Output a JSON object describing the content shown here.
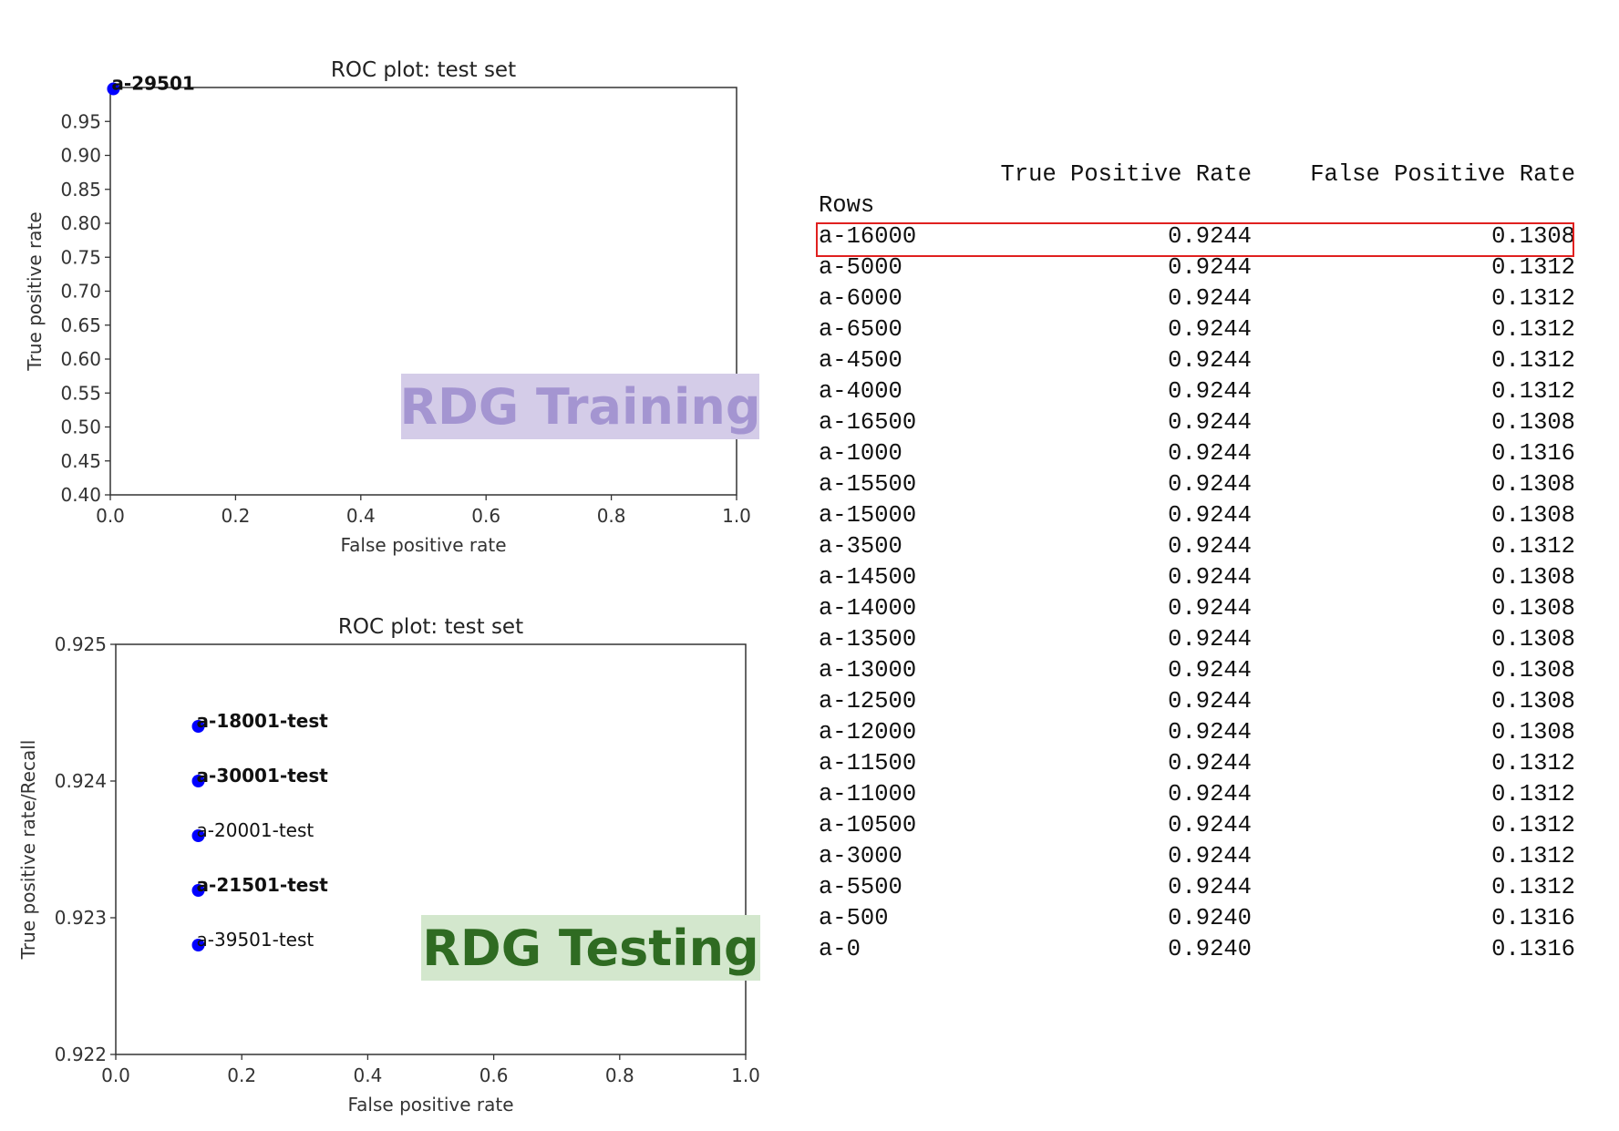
{
  "colors": {
    "point": "#0000ff",
    "axes": "#333333",
    "highlight_box": "#e0201f",
    "training_label_bg": "#d4cce8",
    "training_label_fg": "#a495d1",
    "testing_label_bg": "#d3e7cd",
    "testing_label_fg": "#2f6b22"
  },
  "overlays": {
    "training": "RDG Training",
    "testing": "RDG Testing"
  },
  "chart_data": [
    {
      "type": "scatter",
      "title": "ROC plot: test set",
      "xlabel": "False positive rate",
      "ylabel": "True positive rate",
      "xlim": [
        0.0,
        1.0
      ],
      "ylim": [
        0.4,
        1.0
      ],
      "xticks": [
        "0.0",
        "0.2",
        "0.4",
        "0.6",
        "0.8",
        "1.0"
      ],
      "yticks": [
        "0.40",
        "0.45",
        "0.50",
        "0.55",
        "0.60",
        "0.65",
        "0.70",
        "0.75",
        "0.80",
        "0.85",
        "0.90",
        "0.95"
      ],
      "points": [
        {
          "x": 0.005,
          "y": 0.998,
          "label": "a-29501",
          "bold": true
        }
      ]
    },
    {
      "type": "scatter",
      "title": "ROC plot: test set",
      "xlabel": "False positive rate",
      "ylabel": "True positive rate/Recall",
      "xlim": [
        0.0,
        1.0
      ],
      "ylim": [
        0.922,
        0.925
      ],
      "xticks": [
        "0.0",
        "0.2",
        "0.4",
        "0.6",
        "0.8",
        "1.0"
      ],
      "yticks": [
        "0.922",
        "0.923",
        "0.924",
        "0.925"
      ],
      "points": [
        {
          "x": 0.131,
          "y": 0.9244,
          "label": "a-18001-test",
          "bold": true
        },
        {
          "x": 0.131,
          "y": 0.924,
          "label": "a-30001-test",
          "bold": true
        },
        {
          "x": 0.131,
          "y": 0.9236,
          "label": "a-20001-test",
          "bold": false
        },
        {
          "x": 0.131,
          "y": 0.9232,
          "label": "a-21501-test",
          "bold": true
        },
        {
          "x": 0.131,
          "y": 0.9228,
          "label": "a-39501-test",
          "bold": false
        }
      ]
    }
  ],
  "table": {
    "index_label": "Rows",
    "columns": [
      "True Positive Rate",
      "False Positive Rate"
    ],
    "rows": [
      [
        "a-16000",
        "0.9244",
        "0.1308"
      ],
      [
        "a-5000",
        "0.9244",
        "0.1312"
      ],
      [
        "a-6000",
        "0.9244",
        "0.1312"
      ],
      [
        "a-6500",
        "0.9244",
        "0.1312"
      ],
      [
        "a-4500",
        "0.9244",
        "0.1312"
      ],
      [
        "a-4000",
        "0.9244",
        "0.1312"
      ],
      [
        "a-16500",
        "0.9244",
        "0.1308"
      ],
      [
        "a-1000",
        "0.9244",
        "0.1316"
      ],
      [
        "a-15500",
        "0.9244",
        "0.1308"
      ],
      [
        "a-15000",
        "0.9244",
        "0.1308"
      ],
      [
        "a-3500",
        "0.9244",
        "0.1312"
      ],
      [
        "a-14500",
        "0.9244",
        "0.1308"
      ],
      [
        "a-14000",
        "0.9244",
        "0.1308"
      ],
      [
        "a-13500",
        "0.9244",
        "0.1308"
      ],
      [
        "a-13000",
        "0.9244",
        "0.1308"
      ],
      [
        "a-12500",
        "0.9244",
        "0.1308"
      ],
      [
        "a-12000",
        "0.9244",
        "0.1308"
      ],
      [
        "a-11500",
        "0.9244",
        "0.1312"
      ],
      [
        "a-11000",
        "0.9244",
        "0.1312"
      ],
      [
        "a-10500",
        "0.9244",
        "0.1312"
      ],
      [
        "a-3000",
        "0.9244",
        "0.1312"
      ],
      [
        "a-5500",
        "0.9244",
        "0.1312"
      ],
      [
        "a-500",
        "0.9240",
        "0.1316"
      ],
      [
        "a-0",
        "0.9240",
        "0.1316"
      ]
    ]
  }
}
